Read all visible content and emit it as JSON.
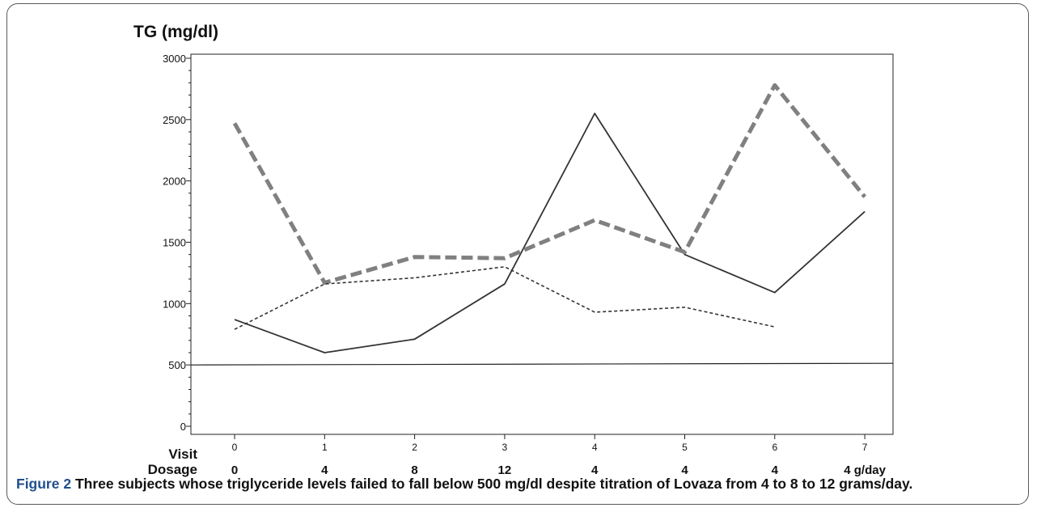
{
  "chart_data": {
    "type": "line",
    "ytitle": "TG (mg/dl)",
    "visit_label": "Visit",
    "dosage_label": "Dosage",
    "x": [
      0,
      1,
      2,
      3,
      4,
      5,
      6,
      7
    ],
    "dosages": [
      "0",
      "4",
      "8",
      "12",
      "4",
      "4",
      "4",
      "4 g/day"
    ],
    "ylim": [
      0,
      3000
    ],
    "yticks": [
      0,
      500,
      1000,
      1500,
      2000,
      2500,
      3000
    ],
    "reference_line": 500,
    "series": [
      {
        "style": "solid",
        "color": "#333333",
        "values": [
          870,
          600,
          710,
          1160,
          2550,
          1400,
          1090,
          1750
        ]
      },
      {
        "style": "thick-dashed",
        "color": "#808080",
        "values": [
          2470,
          1170,
          1380,
          1370,
          1680,
          1420,
          2780,
          1870
        ]
      },
      {
        "style": "dotted",
        "color": "#333333",
        "values": [
          790,
          1160,
          1210,
          1300,
          930,
          970,
          810,
          null
        ]
      }
    ]
  },
  "caption": {
    "label": "Figure 2",
    "text": "Three subjects whose triglyceride levels failed to fall below 500 mg/dl despite titration of Lovaza from 4 to 8 to 12 grams/day."
  }
}
